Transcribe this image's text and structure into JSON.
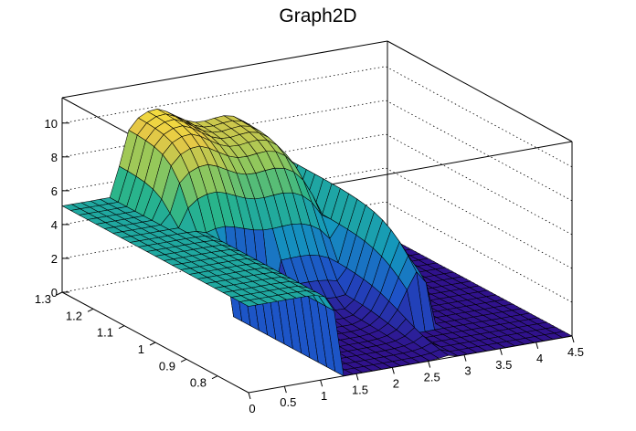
{
  "chart_data": {
    "type": "surface",
    "title": "Graph2D",
    "x_axis": {
      "range": [
        0,
        4.5
      ],
      "ticks": [
        "0",
        "0.5",
        "1",
        "1.5",
        "2",
        "2.5",
        "3",
        "3.5",
        "4",
        "4.5"
      ]
    },
    "y_axis": {
      "range": [
        0.7,
        1.3
      ],
      "ticks": [
        "0.8",
        "0.9",
        "1",
        "1.1",
        "1.2",
        "1.3"
      ]
    },
    "z_axis": {
      "range": [
        0,
        11.5
      ],
      "ticks": [
        "0",
        "2",
        "4",
        "6",
        "8",
        "10"
      ]
    },
    "grid": "dotted horizontal lines on back walls",
    "colormap": "viridis-like (blue to green to yellow)",
    "surface_description": [
      {
        "x_range": [
          0,
          1.3
        ],
        "z": 5,
        "note": "flat plateau at low x"
      },
      {
        "x_range": [
          1.4,
          1.8
        ],
        "y_range": [
          0.7,
          1.1
        ],
        "z": 0,
        "note": "floor region"
      },
      {
        "x_range": [
          0.8,
          1.8
        ],
        "y_range": [
          1.1,
          1.3
        ],
        "z_peak": 9.5,
        "note": "tall ridge"
      },
      {
        "x_range": [
          1.8,
          3.2
        ],
        "z_peak": 7.5,
        "note": "falling ridge"
      },
      {
        "x_range": [
          3.2,
          4.5
        ],
        "z": 0,
        "note": "floor at high x"
      }
    ]
  }
}
